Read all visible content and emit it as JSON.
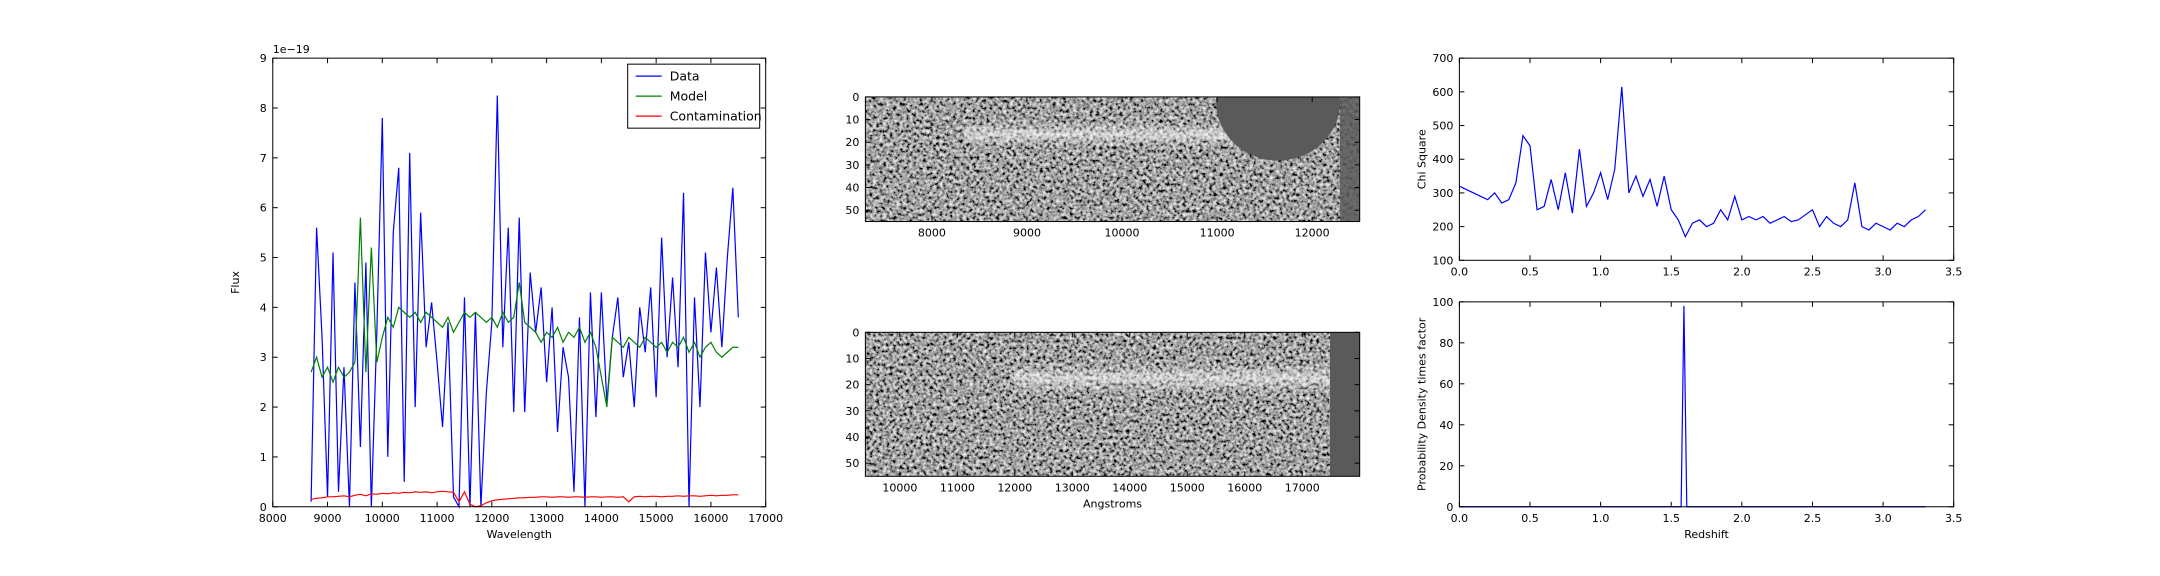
{
  "chart_data": [
    {
      "type": "line",
      "xlabel": "Wavelength",
      "ylabel": "Flux",
      "offset_label": "1e−19",
      "xlim": [
        8000,
        17000
      ],
      "ylim": [
        0,
        9
      ],
      "xticks": [
        8000,
        9000,
        10000,
        11000,
        12000,
        13000,
        14000,
        15000,
        16000,
        17000
      ],
      "yticks": [
        0,
        1,
        2,
        3,
        4,
        5,
        6,
        7,
        8,
        9
      ],
      "legend": "upper right",
      "x": [
        8700,
        8800,
        8900,
        9000,
        9100,
        9200,
        9300,
        9400,
        9500,
        9600,
        9700,
        9800,
        9900,
        10000,
        10100,
        10200,
        10300,
        10400,
        10500,
        10600,
        10700,
        10800,
        10900,
        11000,
        11100,
        11200,
        11300,
        11400,
        11500,
        11600,
        11700,
        11800,
        11900,
        12000,
        12100,
        12200,
        12300,
        12400,
        12500,
        12600,
        12700,
        12800,
        12900,
        13000,
        13100,
        13200,
        13300,
        13400,
        13500,
        13600,
        13700,
        13800,
        13900,
        14000,
        14100,
        14200,
        14300,
        14400,
        14500,
        14600,
        14700,
        14800,
        14900,
        15000,
        15100,
        15200,
        15300,
        15400,
        15500,
        15600,
        15700,
        15800,
        15900,
        16000,
        16100,
        16200,
        16300,
        16400,
        16500
      ],
      "series": [
        {
          "name": "Data",
          "color": "#0000ff",
          "values": [
            0.1,
            5.6,
            3.4,
            0.2,
            5.1,
            0.3,
            2.8,
            0,
            4.5,
            1.2,
            4.9,
            0,
            3.5,
            7.8,
            1.0,
            5.5,
            6.8,
            0.5,
            7.1,
            2.0,
            5.9,
            3.2,
            4.1,
            2.9,
            1.6,
            3.7,
            0.2,
            0,
            4.2,
            0,
            3.9,
            0,
            2.3,
            3.7,
            8.25,
            3.2,
            5.6,
            1.9,
            5.8,
            1.9,
            4.7,
            3.5,
            4.4,
            2.5,
            4.0,
            1.5,
            3.2,
            2.6,
            0.3,
            3.8,
            0,
            4.3,
            1.8,
            4.3,
            2.1,
            3.4,
            4.2,
            2.6,
            3.3,
            2.0,
            4.0,
            3.1,
            4.4,
            2.2,
            5.4,
            3.0,
            4.6,
            2.8,
            6.3,
            0,
            4.2,
            2.0,
            5.1,
            3.5,
            4.8,
            3.2,
            5.0,
            6.4,
            3.8
          ]
        },
        {
          "name": "Model",
          "color": "#008000",
          "values": [
            2.7,
            3.0,
            2.6,
            2.8,
            2.5,
            2.8,
            2.6,
            2.7,
            2.9,
            5.8,
            2.7,
            5.2,
            2.9,
            3.4,
            3.8,
            3.6,
            4.0,
            3.9,
            3.8,
            3.9,
            3.7,
            3.9,
            3.8,
            3.7,
            3.6,
            3.8,
            3.5,
            3.7,
            3.9,
            3.8,
            3.9,
            3.8,
            3.7,
            3.8,
            3.6,
            3.9,
            3.7,
            3.8,
            4.5,
            3.7,
            3.6,
            3.5,
            3.3,
            3.5,
            3.4,
            3.6,
            3.3,
            3.5,
            3.4,
            3.6,
            3.3,
            3.5,
            3.2,
            2.6,
            2.0,
            3.4,
            3.3,
            3.2,
            3.4,
            3.3,
            3.2,
            3.4,
            3.3,
            3.2,
            3.3,
            3.1,
            3.3,
            3.2,
            3.4,
            3.1,
            3.3,
            3.0,
            3.2,
            3.3,
            3.1,
            3.0,
            3.1,
            3.2,
            3.2
          ]
        },
        {
          "name": "Contamination",
          "color": "#ff0000",
          "values": [
            0.15,
            0.17,
            0.18,
            0.2,
            0.2,
            0.21,
            0.22,
            0.2,
            0.23,
            0.25,
            0.22,
            0.26,
            0.25,
            0.27,
            0.26,
            0.28,
            0.27,
            0.29,
            0.28,
            0.3,
            0.29,
            0.3,
            0.28,
            0.3,
            0.31,
            0.3,
            0.29,
            0.1,
            0.3,
            0.05,
            0,
            0.02,
            0.08,
            0.12,
            0.14,
            0.15,
            0.16,
            0.17,
            0.18,
            0.18,
            0.19,
            0.19,
            0.2,
            0.2,
            0.19,
            0.2,
            0.2,
            0.19,
            0.2,
            0.2,
            0.19,
            0.2,
            0.2,
            0.19,
            0.2,
            0.2,
            0.19,
            0.2,
            0.1,
            0.2,
            0.21,
            0.2,
            0.21,
            0.21,
            0.2,
            0.21,
            0.21,
            0.22,
            0.21,
            0.22,
            0.22,
            0.21,
            0.22,
            0.23,
            0.22,
            0.23,
            0.23,
            0.24,
            0.24
          ]
        }
      ]
    },
    {
      "type": "image",
      "xlim": [
        7300,
        12500
      ],
      "ylim": [
        55,
        0
      ],
      "xticks": [
        8000,
        9000,
        10000,
        11000,
        12000
      ],
      "yticks": [
        0,
        10,
        20,
        30,
        40,
        50
      ]
    },
    {
      "type": "image",
      "xlabel": "Angstroms",
      "xlim": [
        9400,
        18000
      ],
      "ylim": [
        55,
        0
      ],
      "xticks": [
        10000,
        11000,
        12000,
        13000,
        14000,
        15000,
        16000,
        17000
      ],
      "yticks": [
        0,
        10,
        20,
        30,
        40,
        50
      ]
    },
    {
      "type": "line",
      "ylabel": "Chi Square",
      "xlim": [
        0,
        3.5
      ],
      "ylim": [
        100,
        700
      ],
      "xticks": [
        {
          "value": 0,
          "label": "0.0"
        },
        0.5,
        {
          "value": 1,
          "label": "1.0"
        },
        1.5,
        {
          "value": 2,
          "label": "2.0"
        },
        2.5,
        {
          "value": 3,
          "label": "3.0"
        },
        3.5
      ],
      "yticks": [
        100,
        200,
        300,
        400,
        500,
        600,
        700
      ],
      "x": [
        0,
        0.05,
        0.1,
        0.15,
        0.2,
        0.25,
        0.3,
        0.35,
        0.4,
        0.45,
        0.5,
        0.55,
        0.6,
        0.65,
        0.7,
        0.75,
        0.8,
        0.85,
        0.9,
        0.95,
        1.0,
        1.05,
        1.1,
        1.15,
        1.2,
        1.25,
        1.3,
        1.35,
        1.4,
        1.45,
        1.5,
        1.55,
        1.6,
        1.65,
        1.7,
        1.75,
        1.8,
        1.85,
        1.9,
        1.95,
        2.0,
        2.05,
        2.1,
        2.15,
        2.2,
        2.25,
        2.3,
        2.35,
        2.4,
        2.45,
        2.5,
        2.55,
        2.6,
        2.65,
        2.7,
        2.75,
        2.8,
        2.85,
        2.9,
        2.95,
        3.0,
        3.05,
        3.1,
        3.15,
        3.2,
        3.25,
        3.3
      ],
      "series": [
        {
          "color": "#0000ff",
          "values": [
            320,
            310,
            300,
            290,
            280,
            300,
            270,
            280,
            330,
            470,
            440,
            250,
            260,
            340,
            250,
            360,
            240,
            430,
            260,
            300,
            360,
            280,
            370,
            615,
            300,
            350,
            290,
            340,
            260,
            350,
            250,
            220,
            170,
            210,
            220,
            200,
            210,
            250,
            220,
            290,
            220,
            230,
            220,
            230,
            210,
            220,
            230,
            215,
            220,
            235,
            250,
            200,
            230,
            210,
            200,
            220,
            330,
            200,
            190,
            210,
            200,
            190,
            210,
            200,
            220,
            230,
            250
          ]
        }
      ]
    },
    {
      "type": "line",
      "xlabel": "Redshift",
      "ylabel": "Probability Density times factor",
      "xlim": [
        0,
        3.5
      ],
      "ylim": [
        0,
        100
      ],
      "xticks": [
        {
          "value": 0,
          "label": "0.0"
        },
        0.5,
        {
          "value": 1,
          "label": "1.0"
        },
        1.5,
        {
          "value": 2,
          "label": "2.0"
        },
        2.5,
        {
          "value": 3,
          "label": "3.0"
        },
        3.5
      ],
      "yticks": [
        0,
        20,
        40,
        60,
        80,
        100
      ],
      "x": [
        0,
        1.55,
        1.57,
        1.59,
        1.61,
        1.63,
        3.3
      ],
      "series": [
        {
          "color": "#0000ff",
          "values": [
            0,
            0,
            0,
            98,
            0,
            0,
            0
          ]
        }
      ]
    }
  ]
}
